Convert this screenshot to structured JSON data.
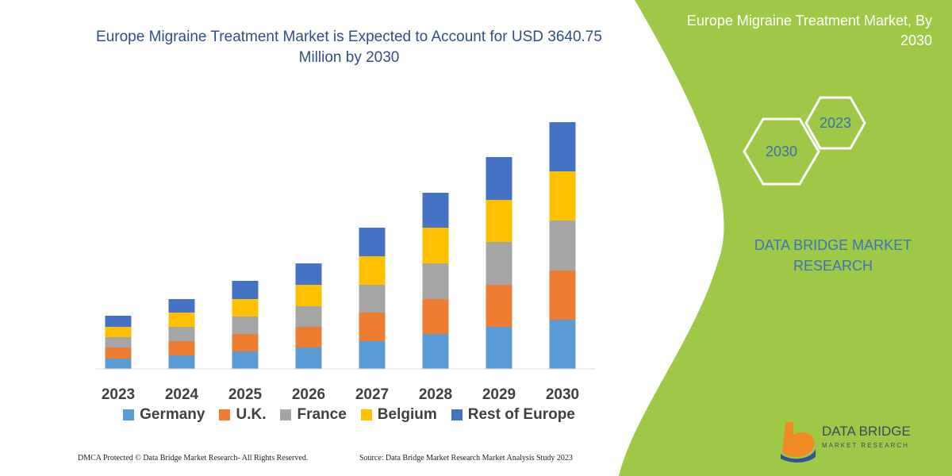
{
  "chart_data": {
    "type": "bar",
    "stacked": true,
    "title": "Europe Migraine Treatment Market is Expected to Account for USD 3640.75 Million by 2030",
    "categories": [
      "2023",
      "2024",
      "2025",
      "2026",
      "2027",
      "2028",
      "2029",
      "2030"
    ],
    "series": [
      {
        "name": "Germany",
        "color": "#5b9bd5",
        "values": [
          13,
          17,
          22,
          27,
          35,
          44,
          53,
          62
        ]
      },
      {
        "name": "U.K.",
        "color": "#ed7d31",
        "values": [
          14,
          18,
          22,
          26,
          36,
          44,
          53,
          62
        ]
      },
      {
        "name": "France",
        "color": "#a5a5a5",
        "values": [
          13,
          18,
          22,
          26,
          35,
          45,
          54,
          63
        ]
      },
      {
        "name": "Belgium",
        "color": "#ffc000",
        "values": [
          13,
          18,
          22,
          27,
          36,
          45,
          53,
          62
        ]
      },
      {
        "name": "Rest of Europe",
        "color": "#4472c4",
        "values": [
          14,
          17,
          23,
          27,
          36,
          44,
          54,
          62
        ]
      }
    ],
    "ylim": [
      0,
      320
    ]
  },
  "panel": {
    "title": "Europe Migraine Treatment Market, By 2030",
    "hexagons": [
      "2023",
      "2030"
    ],
    "brand": "DATA BRIDGE MARKET RESEARCH"
  },
  "footer": {
    "left": "DMCA Protected © Data Bridge Market Research-  All Rights Reserved.",
    "right": "Source: Data Bridge Market Research  Market Analysis Study 2023"
  },
  "logo": {
    "name": "DATA BRIDGE",
    "subtitle": "MARKET RESEARCH"
  }
}
